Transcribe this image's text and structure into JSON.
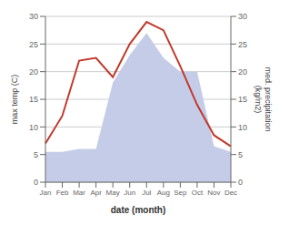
{
  "chart_data": {
    "type": "line",
    "x_label": "date (month)",
    "y_label": "max temp (C)",
    "y2_label": "med. precipitation\n(kg/m2)",
    "categories": [
      "Jan",
      "Feb",
      "Mar",
      "Apr",
      "May",
      "Jun",
      "Jul",
      "Aug",
      "Sep",
      "Oct",
      "Nov",
      "Dec"
    ],
    "series": [
      {
        "type": "line",
        "color": "#c0392b",
        "values": [
          7.0,
          12.0,
          22.0,
          22.5,
          19.0,
          25.0,
          29.0,
          27.5,
          21.0,
          14.0,
          8.5,
          6.5
        ]
      },
      {
        "type": "area",
        "axis": "y2",
        "color": "#c5cce8",
        "values": [
          5.5,
          5.5,
          6.0,
          6.0,
          18.0,
          23.0,
          27.0,
          22.5,
          20.0,
          20.0,
          6.5,
          5.5
        ]
      }
    ],
    "ylim": [
      0,
      30
    ],
    "yticks": [
      0,
      5,
      10,
      15,
      20,
      25,
      30
    ],
    "y2lim": [
      0,
      30
    ],
    "y2ticks": [
      0,
      5,
      10,
      15,
      20,
      25,
      30
    ],
    "grid": true
  }
}
